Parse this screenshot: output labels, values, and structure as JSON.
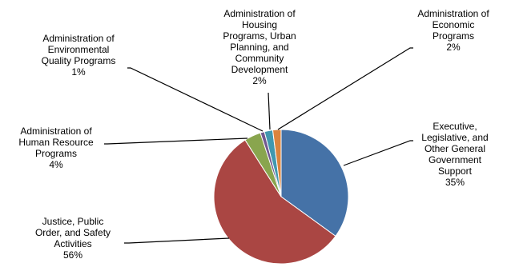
{
  "chart_data": {
    "type": "pie",
    "title": "",
    "legend": "none",
    "slices": [
      {
        "label": "Executive, Legislative, and Other General Government Support",
        "value": 35,
        "percent_label": "35%",
        "color": "#4572A7"
      },
      {
        "label": "Justice, Public Order, and Safety Activities",
        "value": 56,
        "percent_label": "56%",
        "color": "#AA4643"
      },
      {
        "label": "Administration of Human Resource Programs",
        "value": 4,
        "percent_label": "4%",
        "color": "#89A54E"
      },
      {
        "label": "Administration of Environmental Quality Programs",
        "value": 1,
        "percent_label": "1%",
        "color": "#71588F"
      },
      {
        "label": "Administration of Housing Programs, Urban Planning, and Community Development",
        "value": 2,
        "percent_label": "2%",
        "color": "#4198AF"
      },
      {
        "label": "Administration of Economic Programs",
        "value": 2,
        "percent_label": "2%",
        "color": "#DB843D"
      }
    ]
  }
}
